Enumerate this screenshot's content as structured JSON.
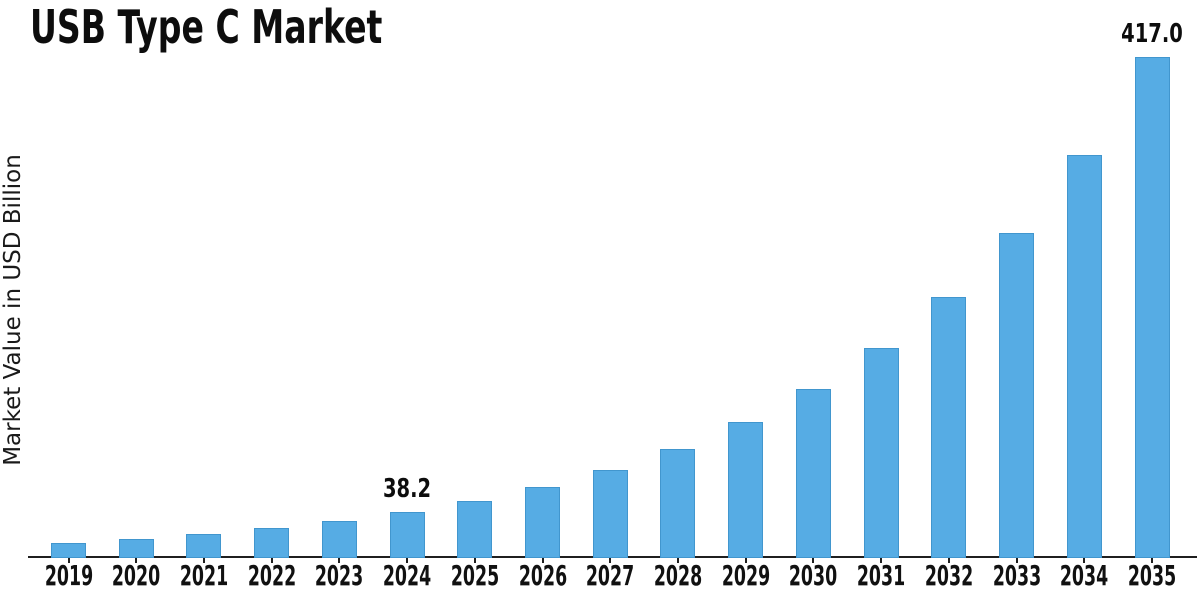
{
  "chart_data": {
    "type": "bar",
    "title": "USB Type C Market",
    "xlabel": "",
    "ylabel": "Market Value in USD Billion",
    "categories": [
      "2019",
      "2020",
      "2021",
      "2022",
      "2023",
      "2024",
      "2025",
      "2026",
      "2027",
      "2028",
      "2029",
      "2030",
      "2031",
      "2032",
      "2033",
      "2034",
      "2035"
    ],
    "values": [
      12.9,
      16.0,
      19.9,
      24.7,
      30.7,
      38.2,
      47.5,
      59.0,
      73.3,
      91.1,
      113.2,
      140.7,
      174.9,
      217.4,
      270.2,
      335.8,
      417.0
    ],
    "ylim": [
      0,
      440
    ],
    "grid": false,
    "legend": "none",
    "annotations": [
      {
        "category": "2024",
        "text": "38.2"
      },
      {
        "category": "2035",
        "text": "417.0"
      }
    ],
    "colors": {
      "bar_fill": "#56ace4",
      "bar_edge": "#3e9bd3",
      "axis": "#1f1f1f",
      "title_text": "#0d0d0d",
      "label_text": "#111111",
      "background": "#ffffff"
    }
  }
}
